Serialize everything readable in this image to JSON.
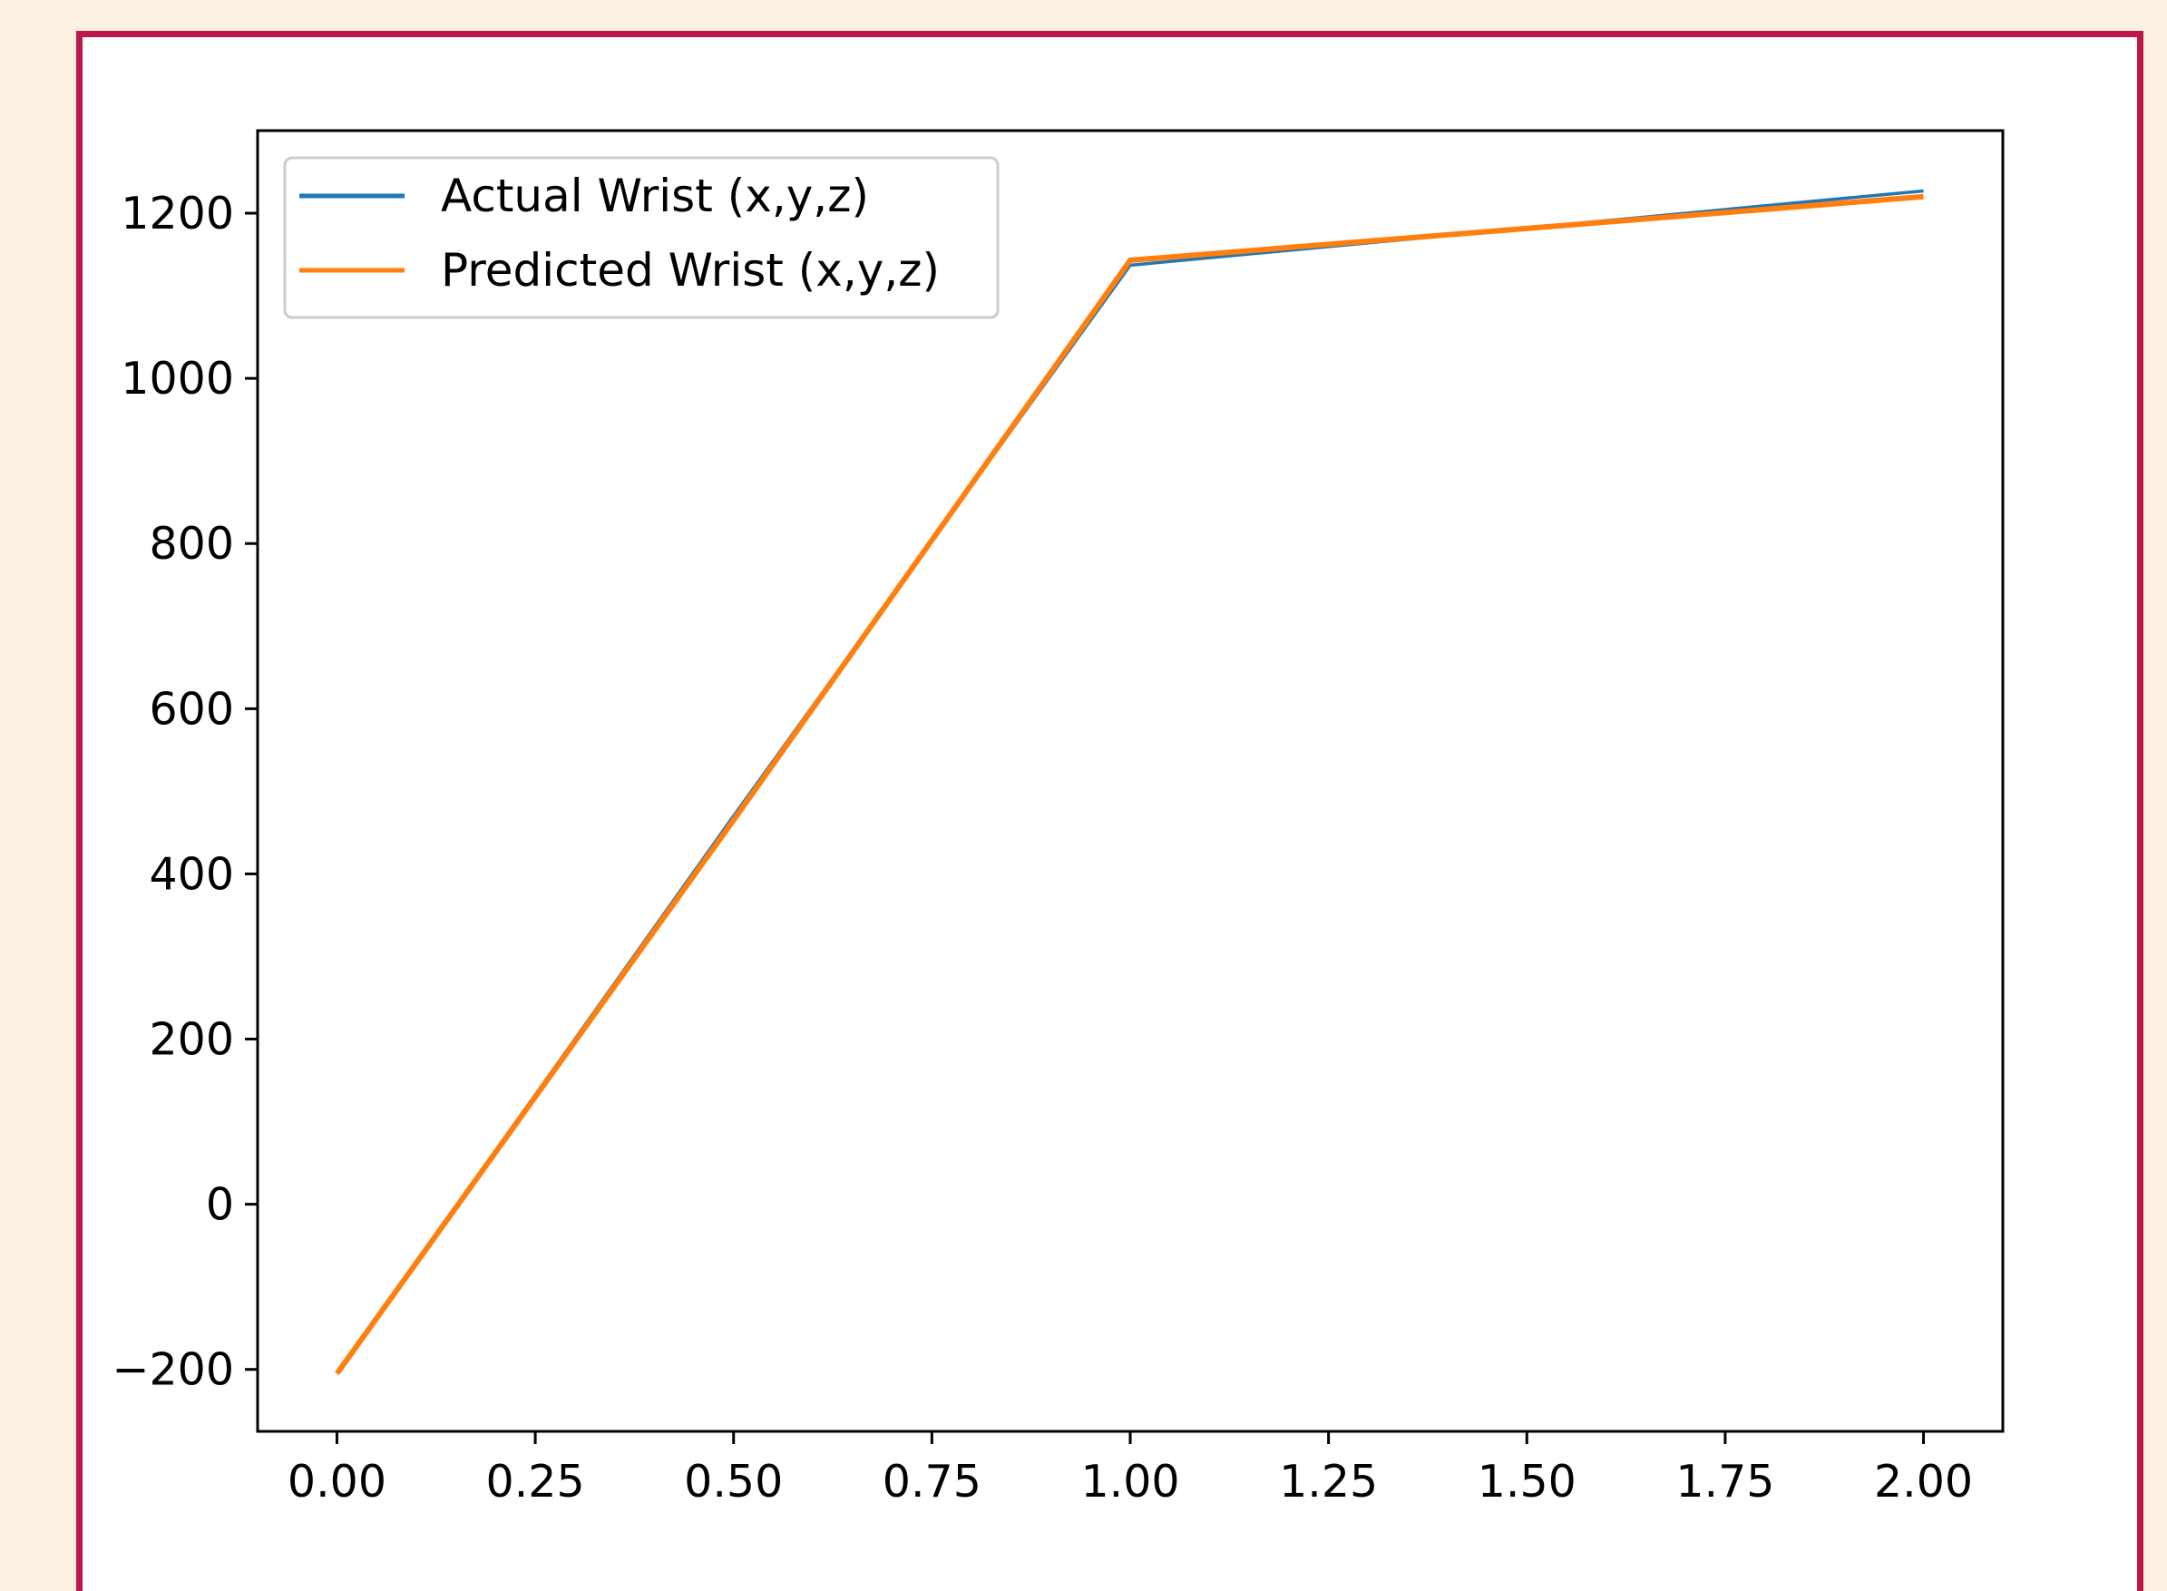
{
  "chart_data": {
    "type": "line",
    "title": "",
    "xlabel": "",
    "ylabel": "",
    "x": [
      0,
      0.5,
      1,
      2
    ],
    "series": [
      {
        "name": "Actual Wrist (x,y,z)",
        "color": "#1f77b4",
        "values": [
          -205,
          470,
          1137,
          1227
        ]
      },
      {
        "name": "Predicted Wrist (x,y,z)",
        "color": "#ff7f0e",
        "values": [
          -205,
          465,
          1143,
          1220
        ]
      }
    ],
    "xlim": [
      -0.1,
      2.1
    ],
    "ylim": [
      -275,
      1300
    ],
    "x_ticks": [
      0,
      0.25,
      0.5,
      0.75,
      1.0,
      1.25,
      1.5,
      1.75,
      2.0
    ],
    "x_tick_labels": [
      "0.00",
      "0.25",
      "0.50",
      "0.75",
      "1.00",
      "1.25",
      "1.50",
      "1.75",
      "2.00"
    ],
    "y_ticks": [
      -200,
      0,
      200,
      400,
      600,
      800,
      1000,
      1200
    ],
    "y_tick_labels": [
      "−200",
      "0",
      "200",
      "400",
      "600",
      "800",
      "1000",
      "1200"
    ],
    "grid": false,
    "legend_position": "upper-left"
  },
  "colors": {
    "frame_border": "#c0174a",
    "page_background": "#fdf1e2"
  }
}
